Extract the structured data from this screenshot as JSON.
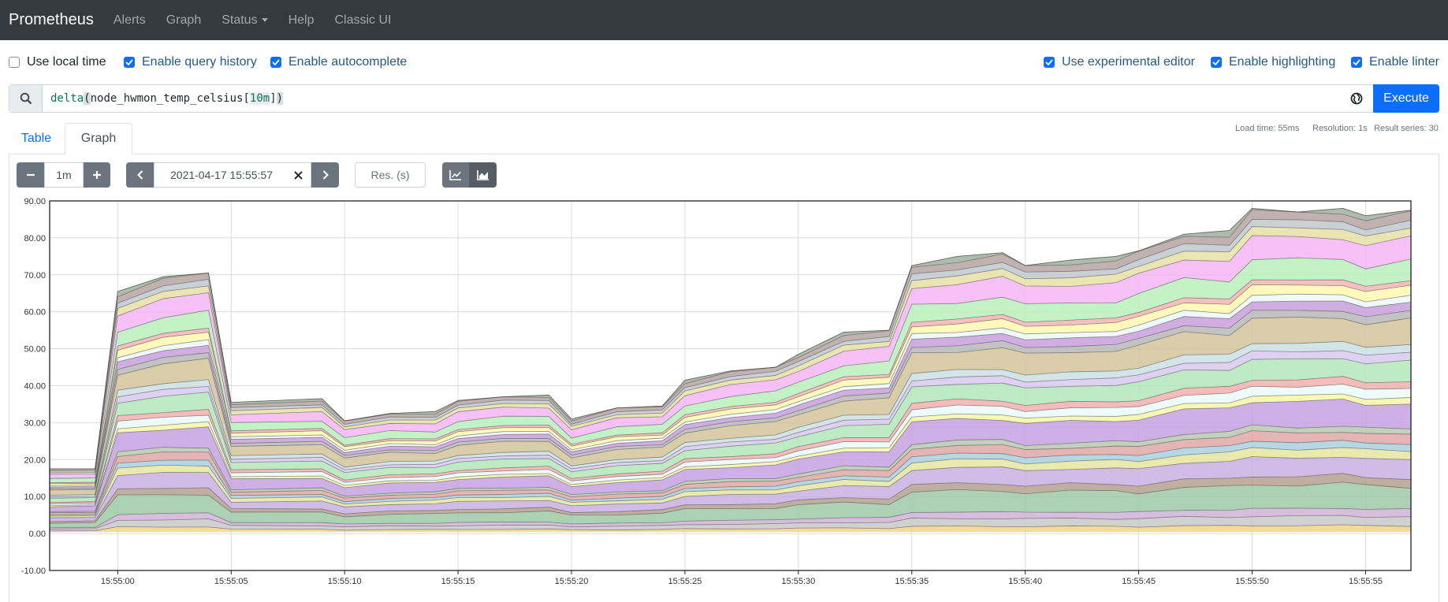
{
  "navbar": {
    "brand": "Prometheus",
    "links": [
      "Alerts",
      "Graph",
      "Status",
      "Help",
      "Classic UI"
    ]
  },
  "options": {
    "local_time": {
      "label": "Use local time",
      "checked": false
    },
    "query_history": {
      "label": "Enable query history",
      "checked": true
    },
    "autocomplete": {
      "label": "Enable autocomplete",
      "checked": true
    },
    "experimental_editor": {
      "label": "Use experimental editor",
      "checked": true
    },
    "highlighting": {
      "label": "Enable highlighting",
      "checked": true
    },
    "linter": {
      "label": "Enable linter",
      "checked": true
    }
  },
  "query": {
    "fn": "delta",
    "open": "(",
    "metric": "node_hwmon_temp_celsius",
    "range_open": "[",
    "range": "10m",
    "range_close": "]",
    "close": ")"
  },
  "execute_label": "Execute",
  "stats": {
    "load_time": "Load time: 55ms",
    "resolution": "Resolution: 1s",
    "result_series": "Result series: 30"
  },
  "tabs": {
    "table": "Table",
    "graph": "Graph"
  },
  "graph_controls": {
    "range": "1m",
    "end_time": "2021-04-17 15:55:57",
    "resolution_placeholder": "Res. (s)"
  },
  "chart_data": {
    "type": "area",
    "stacked": true,
    "series_count": 30,
    "ylim": [
      -10,
      90
    ],
    "y_ticks": [
      "90.00",
      "80.00",
      "70.00",
      "60.00",
      "50.00",
      "40.00",
      "30.00",
      "20.00",
      "10.00",
      "0.00",
      "-10.00"
    ],
    "y_tick_values": [
      90,
      80,
      70,
      60,
      50,
      40,
      30,
      20,
      10,
      0,
      -10
    ],
    "x_ticks": [
      "15:55:00",
      "15:55:05",
      "15:55:10",
      "15:55:15",
      "15:55:20",
      "15:55:25",
      "15:55:30",
      "15:55:35",
      "15:55:40",
      "15:55:45",
      "15:55:50",
      "15:55:55"
    ],
    "x_range_seconds": [
      -3,
      57
    ],
    "x_tick_seconds": [
      0,
      5,
      10,
      15,
      20,
      25,
      30,
      35,
      40,
      45,
      50,
      55
    ],
    "sample_seconds": [
      -3,
      -1,
      0,
      2,
      4,
      5,
      9,
      10,
      12,
      14,
      15,
      17,
      19,
      20,
      22,
      24,
      25,
      27,
      29,
      30,
      32,
      34,
      35,
      37,
      39,
      40,
      42,
      44,
      45,
      47,
      49,
      50,
      52,
      54,
      55,
      57
    ],
    "top_total": [
      17.5,
      17.5,
      65.5,
      69.5,
      70.5,
      35.5,
      36.5,
      30.5,
      32.5,
      33,
      36,
      37,
      37.5,
      31,
      34,
      34.5,
      41.5,
      44,
      45,
      48.5,
      54.5,
      55,
      72.5,
      75,
      76,
      72.5,
      74,
      75,
      76.5,
      81,
      82,
      88,
      87,
      88,
      86,
      87.5
    ],
    "grid": true,
    "legend": "none"
  },
  "colors": {
    "accent": "#0d6efd",
    "navbar": "#343a40",
    "series": [
      "#f2d388",
      "#c9c9c9",
      "#d0b3d9",
      "#9ec9a8",
      "#b5a08f",
      "#c8b0e3",
      "#e6e6a0",
      "#a9d1e0",
      "#e0a7a7",
      "#b7c9b0",
      "#c5a2e3",
      "#f7f7a8",
      "#ebfafa",
      "#f5b0b0",
      "#b3e8b9",
      "#d8c9f0",
      "#cde0e6",
      "#d4c49a",
      "#b8b8b8",
      "#c9a0dc",
      "#edf9f9",
      "#fff8b0",
      "#f7b4b4",
      "#b9f0bd",
      "#f4b6f4",
      "#e7e0a6",
      "#c0c8cf",
      "#b7a3a3",
      "#9fb09f",
      "#a89bb5"
    ]
  }
}
